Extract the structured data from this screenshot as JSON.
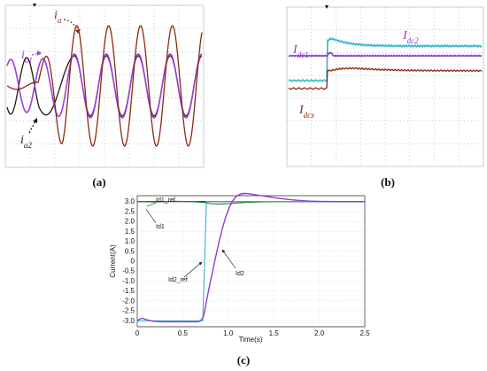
{
  "colors": {
    "series_a": "#8b2a12",
    "series_b": "#8e3ad8",
    "cyan": "#33b5c8",
    "dark": "#222222",
    "scope_bg": "#ffffff",
    "grid": "#8899aa"
  },
  "panels": {
    "a": {
      "label": "(a)",
      "traces": [
        {
          "name": "i_a",
          "label": "ia",
          "color": "#8b2a12"
        },
        {
          "name": "i_a1",
          "label": "ia1",
          "color": "#9b3fd9"
        },
        {
          "name": "i_a2",
          "label": "ia2",
          "color": "#1a1a1a"
        }
      ]
    },
    "b": {
      "label": "(b)",
      "traces": [
        {
          "name": "I_dc1",
          "label": "Idc1",
          "color": "#8e3ad8"
        },
        {
          "name": "I_dc2",
          "label": "Idc2",
          "color": "#33b5c8"
        },
        {
          "name": "I_dcx",
          "label": "Idcx",
          "color": "#8b2a12"
        }
      ]
    },
    "c": {
      "label": "(c)"
    }
  },
  "chart_data": {
    "type": "line",
    "xlabel": "Time(s)",
    "ylabel": "Current(A)",
    "xlim": [
      0,
      2.5
    ],
    "ylim": [
      -3.3,
      3.3
    ],
    "x_ticks": [
      "0",
      "0.5",
      "1.0",
      "1.5",
      "2.0",
      "2.5"
    ],
    "y_ticks": [
      "3.0",
      "2.5",
      "2.0",
      "1.5",
      "1.0",
      "0.5",
      "0",
      "-0.5",
      "-1.0",
      "-1.5",
      "-2.0",
      "-2.5",
      "-3.0"
    ],
    "grid": true,
    "annotations": [
      "Id1_ref",
      "Id1",
      "Id2_ref",
      "Id2"
    ],
    "series": [
      {
        "name": "Id1_ref",
        "color": "#222222",
        "x": [
          0,
          2.5
        ],
        "y": [
          3.0,
          3.0
        ]
      },
      {
        "name": "Id1",
        "color": "#2d7a2d",
        "x": [
          0,
          0.2,
          0.4,
          0.6,
          0.75,
          0.8,
          0.9,
          1.0,
          1.2,
          1.5,
          2.0,
          2.5
        ],
        "y": [
          3.0,
          2.98,
          3.02,
          3.0,
          2.95,
          2.9,
          2.88,
          2.9,
          2.96,
          3.0,
          3.0,
          3.0
        ]
      },
      {
        "name": "Id2_ref",
        "color": "#33b5c8",
        "x": [
          0,
          0.72,
          0.74,
          0.76,
          2.5
        ],
        "y": [
          -3.0,
          -3.0,
          0.0,
          3.0,
          3.0
        ]
      },
      {
        "name": "Id2",
        "color": "#8e3ad8",
        "x": [
          0,
          0.05,
          0.1,
          0.2,
          0.4,
          0.6,
          0.72,
          0.76,
          0.85,
          0.95,
          1.05,
          1.15,
          1.3,
          1.5,
          1.7,
          1.9,
          2.1,
          2.5
        ],
        "y": [
          -3.0,
          -2.85,
          -2.95,
          -3.05,
          -3.05,
          -3.05,
          -3.05,
          -2.0,
          0.0,
          2.0,
          3.15,
          3.45,
          3.35,
          3.2,
          3.08,
          3.02,
          3.0,
          3.0
        ]
      }
    ]
  }
}
